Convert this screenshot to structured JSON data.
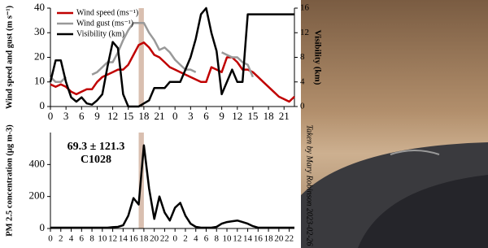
{
  "chart_data": [
    {
      "type": "line",
      "ylabel": "Wind speed and gust (m s⁻¹)",
      "y2label": "Visibility (km)",
      "x": [
        0,
        1,
        2,
        3,
        4,
        5,
        6,
        7,
        8,
        9,
        10,
        11,
        12,
        13,
        14,
        15,
        16,
        17,
        18,
        19,
        20,
        21,
        22,
        23,
        24,
        25,
        26,
        27,
        28,
        29,
        30,
        31,
        32,
        33,
        34,
        35,
        36,
        37,
        38,
        39,
        40,
        41,
        42,
        43,
        44,
        45,
        46,
        47
      ],
      "xlim": [
        0,
        47
      ],
      "xticks": [
        0,
        3,
        6,
        9,
        12,
        15,
        18,
        21,
        {
          "value": 24,
          "label": "0"
        },
        {
          "value": 27,
          "label": "3"
        },
        {
          "value": 30,
          "label": "6"
        },
        {
          "value": 33,
          "label": "9"
        },
        {
          "value": 36,
          "label": "12"
        },
        {
          "value": 39,
          "label": "15"
        },
        {
          "value": 42,
          "label": "18"
        },
        {
          "value": 45,
          "label": "21"
        }
      ],
      "ylim": [
        0,
        40
      ],
      "yticks": [
        0,
        10,
        20,
        30,
        40
      ],
      "y2lim": [
        0,
        16
      ],
      "y2ticks": [
        0,
        4,
        8,
        12,
        16
      ],
      "highlight": [
        17,
        18
      ],
      "highlight_color": "#d9bfb0",
      "series": [
        {
          "name": "Wind speed (ms⁻¹)",
          "color": "#c00000",
          "values": [
            9,
            8,
            9,
            8,
            6,
            5,
            6,
            7,
            7,
            10,
            12,
            13,
            14,
            15,
            15,
            17,
            21,
            25,
            26,
            24,
            21,
            20,
            18,
            16,
            15,
            14,
            13,
            12,
            11,
            10,
            10,
            16,
            15,
            14,
            20,
            20,
            18,
            15,
            15,
            14,
            12,
            10,
            8,
            6,
            4,
            3,
            2,
            4
          ]
        },
        {
          "name": "Wind gust (ms⁻¹)",
          "color": "#999999",
          "values": [
            12,
            10,
            10,
            12,
            null,
            null,
            null,
            null,
            13,
            14,
            16,
            18,
            18,
            22,
            27,
            31,
            34,
            34,
            34,
            30,
            27,
            23,
            24,
            22,
            19,
            17,
            15,
            15,
            14,
            null,
            null,
            null,
            null,
            22,
            21,
            20,
            20,
            18,
            17,
            12,
            null,
            null,
            null,
            null,
            null,
            null,
            null,
            null
          ]
        },
        {
          "name": "Visibility (km)",
          "color": "#000000",
          "axis": "y2",
          "values": [
            4,
            7.5,
            7.5,
            4,
            1.5,
            0.8,
            1.5,
            0.5,
            0.3,
            1,
            2,
            6.5,
            10.5,
            9.5,
            2,
            0,
            0,
            0,
            0.5,
            1,
            3,
            3,
            3,
            4,
            4,
            4,
            6,
            8,
            11,
            15,
            16,
            12,
            9,
            2,
            4,
            6,
            4,
            4,
            15,
            15,
            15,
            15,
            15,
            15,
            15,
            15,
            15,
            15
          ]
        }
      ]
    },
    {
      "type": "line",
      "ylabel": "PM 2.5 concentration (µg m-3)",
      "annotations": [
        {
          "text": "69.3 ± 121.3",
          "color": "#e00000"
        },
        {
          "text": "C1028",
          "color": "#000000"
        }
      ],
      "x": [
        0,
        1,
        2,
        3,
        4,
        5,
        6,
        7,
        8,
        9,
        10,
        11,
        12,
        13,
        14,
        15,
        16,
        17,
        18,
        19,
        20,
        21,
        22,
        23,
        24,
        25,
        26,
        27,
        28,
        29,
        30,
        31,
        32,
        33,
        34,
        35,
        36,
        37,
        38,
        39,
        40,
        41,
        42,
        43,
        44,
        45,
        46,
        47
      ],
      "xlim": [
        0,
        47
      ],
      "xticks": [
        0,
        2,
        4,
        6,
        8,
        10,
        12,
        14,
        16,
        18,
        20,
        22,
        {
          "value": 24,
          "label": "0"
        },
        {
          "value": 26,
          "label": "2"
        },
        {
          "value": 28,
          "label": "4"
        },
        {
          "value": 30,
          "label": "6"
        },
        {
          "value": 32,
          "label": "8"
        },
        {
          "value": 34,
          "label": "10"
        },
        {
          "value": 36,
          "label": "12"
        },
        {
          "value": 38,
          "label": "14"
        },
        {
          "value": 40,
          "label": "16"
        },
        {
          "value": 42,
          "label": "18"
        },
        {
          "value": 44,
          "label": "20"
        },
        {
          "value": 46,
          "label": "22"
        }
      ],
      "ylim": [
        0,
        600
      ],
      "yticks": [
        0,
        200,
        400
      ],
      "highlight": [
        17,
        18
      ],
      "highlight_color": "#d9bfb0",
      "series": [
        {
          "color": "#000000",
          "values": [
            5,
            5,
            5,
            5,
            5,
            5,
            5,
            5,
            5,
            5,
            5,
            5,
            8,
            10,
            20,
            80,
            190,
            150,
            520,
            250,
            60,
            200,
            100,
            50,
            130,
            160,
            80,
            30,
            10,
            5,
            5,
            5,
            10,
            30,
            40,
            45,
            50,
            40,
            30,
            15,
            5,
            5,
            5,
            5,
            5,
            5,
            5,
            5
          ]
        }
      ]
    }
  ],
  "photo": {
    "caption": "Taken by Mary Robinson 2023-02-26"
  }
}
